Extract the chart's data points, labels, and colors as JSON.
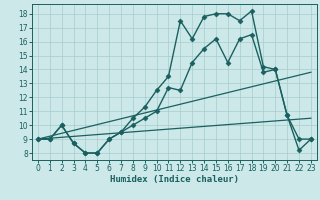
{
  "xlabel": "Humidex (Indice chaleur)",
  "background_color": "#cde8e8",
  "grid_color": "#a8cccc",
  "line_color": "#1a6060",
  "xlim": [
    -0.5,
    23.5
  ],
  "ylim": [
    7.5,
    18.7
  ],
  "xticks": [
    0,
    1,
    2,
    3,
    4,
    5,
    6,
    7,
    8,
    9,
    10,
    11,
    12,
    13,
    14,
    15,
    16,
    17,
    18,
    19,
    20,
    21,
    22,
    23
  ],
  "yticks": [
    8,
    9,
    10,
    11,
    12,
    13,
    14,
    15,
    16,
    17,
    18
  ],
  "series": [
    {
      "x": [
        0,
        1,
        2,
        3,
        4,
        5,
        6,
        7,
        8,
        9,
        10,
        11,
        12,
        13,
        14,
        15,
        16,
        17,
        18,
        19,
        20,
        21,
        22,
        23
      ],
      "y": [
        9,
        9,
        10,
        8.7,
        8,
        8,
        9,
        9.5,
        10,
        10.5,
        11,
        12.7,
        12.5,
        14.5,
        15.5,
        16.2,
        14.5,
        16.2,
        16.5,
        13.8,
        14,
        10.7,
        9,
        9
      ],
      "marker": "D",
      "markersize": 2.5,
      "linewidth": 1.0
    },
    {
      "x": [
        0,
        1,
        2,
        3,
        4,
        5,
        6,
        7,
        8,
        9,
        10,
        11,
        12,
        13,
        14,
        15,
        16,
        17,
        18,
        19,
        20,
        21,
        22,
        23
      ],
      "y": [
        9,
        9,
        10,
        8.7,
        8,
        8,
        9,
        9.5,
        10.5,
        11.3,
        12.5,
        13.5,
        17.5,
        16.2,
        17.8,
        18,
        18,
        17.5,
        18.2,
        14.2,
        14,
        10.7,
        8.2,
        9
      ],
      "marker": "D",
      "markersize": 2.5,
      "linewidth": 1.0
    },
    {
      "x": [
        0,
        23
      ],
      "y": [
        9,
        13.8
      ],
      "marker": null,
      "markersize": 0,
      "linewidth": 0.9
    },
    {
      "x": [
        0,
        23
      ],
      "y": [
        9,
        10.5
      ],
      "marker": null,
      "markersize": 0,
      "linewidth": 0.9
    }
  ]
}
